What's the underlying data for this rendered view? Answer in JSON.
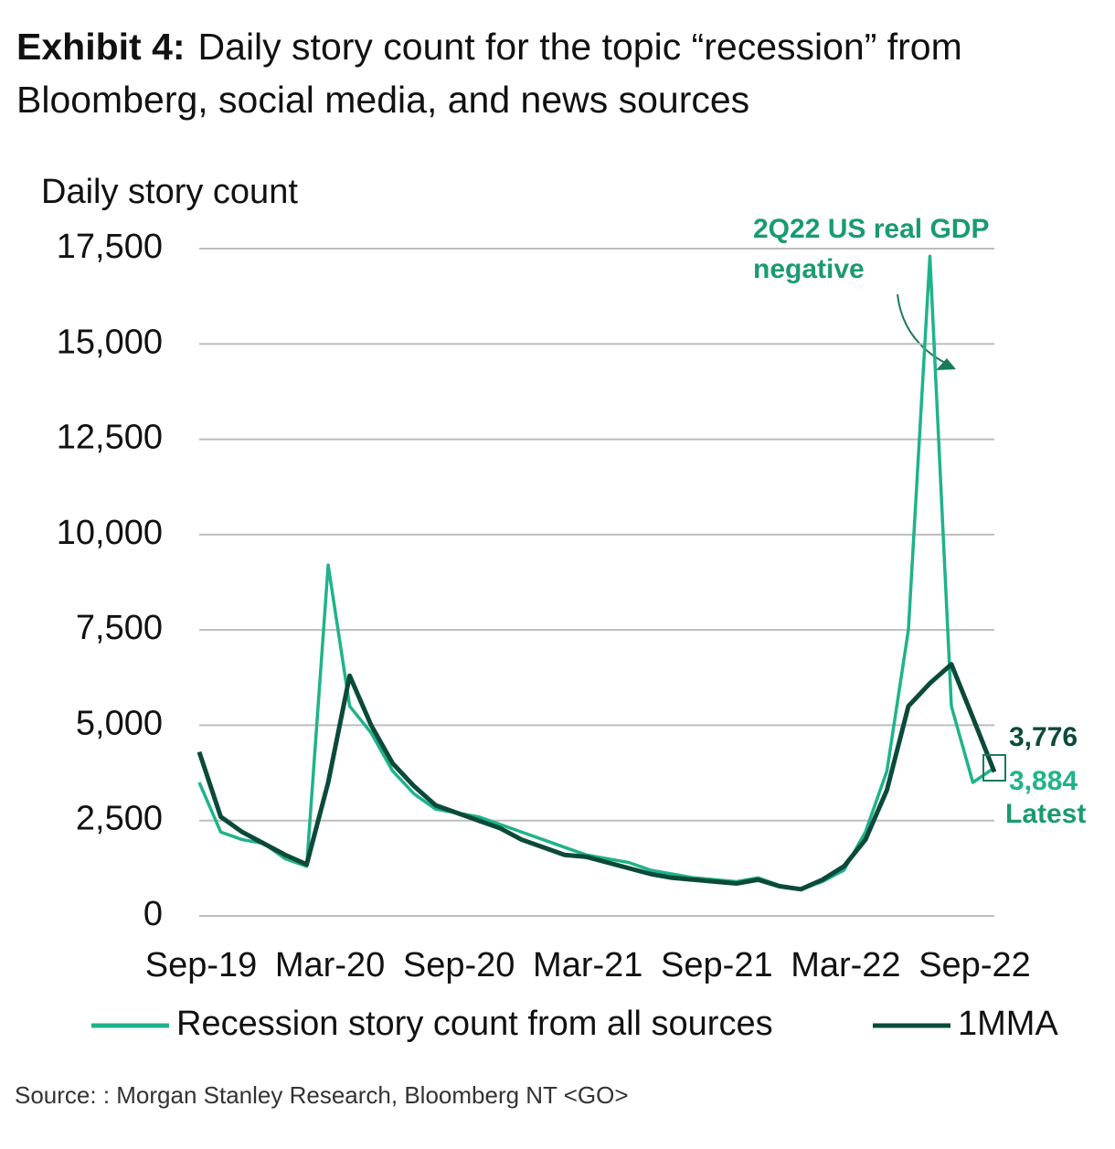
{
  "chart_data": {
    "type": "line",
    "title_prefix": "Exhibit 4:",
    "title": "Daily story count for the topic “recession” from Bloomberg, social media, and news sources",
    "y_label": "Daily story count",
    "source": "Source: : Morgan Stanley Research, Bloomberg NT <GO>",
    "annotation_lines": [
      "2Q22 US real GDP",
      "negative"
    ],
    "latest_note": "Latest",
    "x": [
      "Sep-19",
      "Oct-19",
      "Nov-19",
      "Dec-19",
      "Jan-20",
      "Feb-20",
      "Mar-20",
      "Apr-20",
      "May-20",
      "Jun-20",
      "Jul-20",
      "Aug-20",
      "Sep-20",
      "Oct-20",
      "Nov-20",
      "Dec-20",
      "Jan-21",
      "Feb-21",
      "Mar-21",
      "Apr-21",
      "May-21",
      "Jun-21",
      "Jul-21",
      "Aug-21",
      "Sep-21",
      "Oct-21",
      "Nov-21",
      "Dec-21",
      "Jan-22",
      "Feb-22",
      "Mar-22",
      "Apr-22",
      "May-22",
      "Jun-22",
      "Jul-22",
      "Aug-22",
      "Sep-22",
      "Oct-22"
    ],
    "xticks": [
      "Sep-19",
      "Mar-20",
      "Sep-20",
      "Mar-21",
      "Sep-21",
      "Mar-22",
      "Sep-22"
    ],
    "ylim": [
      0,
      17500
    ],
    "yticks": [
      0,
      {
        "value": 2500,
        "label": "2,500"
      },
      {
        "value": 5000,
        "label": "5,000"
      },
      {
        "value": 7500,
        "label": "7,500"
      },
      {
        "value": 10000,
        "label": "10,000"
      },
      {
        "value": 12500,
        "label": "12,500"
      },
      {
        "value": 15000,
        "label": "15,000"
      },
      {
        "value": 17500,
        "label": "17,500"
      }
    ],
    "grid": true,
    "series": [
      {
        "name": "Recession story count from all sources",
        "color": "#1fb38a",
        "values": [
          3500,
          2200,
          2000,
          1900,
          1500,
          1300,
          9200,
          5500,
          4800,
          3800,
          3200,
          2800,
          2700,
          2600,
          2400,
          2200,
          2000,
          1800,
          1600,
          1500,
          1400,
          1200,
          1100,
          1000,
          950,
          900,
          1000,
          800,
          700,
          900,
          1200,
          2200,
          3800,
          7500,
          17300,
          5500,
          3500,
          3884
        ],
        "value_labels": [
          null,
          null,
          null,
          null,
          null,
          null,
          null,
          null,
          null,
          null,
          null,
          null,
          null,
          null,
          null,
          null,
          null,
          null,
          null,
          null,
          null,
          null,
          null,
          null,
          null,
          null,
          null,
          null,
          null,
          null,
          null,
          null,
          null,
          null,
          null,
          null,
          null,
          "3,884"
        ]
      },
      {
        "name": "1MMA",
        "color": "#0b4a3a",
        "values": [
          4300,
          2600,
          2200,
          1900,
          1600,
          1350,
          3500,
          6300,
          5000,
          4000,
          3400,
          2900,
          2700,
          2500,
          2300,
          2000,
          1800,
          1600,
          1550,
          1400,
          1250,
          1100,
          1000,
          950,
          900,
          850,
          950,
          780,
          700,
          950,
          1300,
          2000,
          3300,
          5500,
          6100,
          6600,
          5200,
          3776
        ],
        "value_labels": [
          null,
          null,
          null,
          null,
          null,
          null,
          null,
          null,
          null,
          null,
          null,
          null,
          null,
          null,
          null,
          null,
          null,
          null,
          null,
          null,
          null,
          null,
          null,
          null,
          null,
          null,
          null,
          null,
          null,
          null,
          null,
          null,
          null,
          null,
          null,
          null,
          null,
          "3,776"
        ]
      }
    ]
  }
}
